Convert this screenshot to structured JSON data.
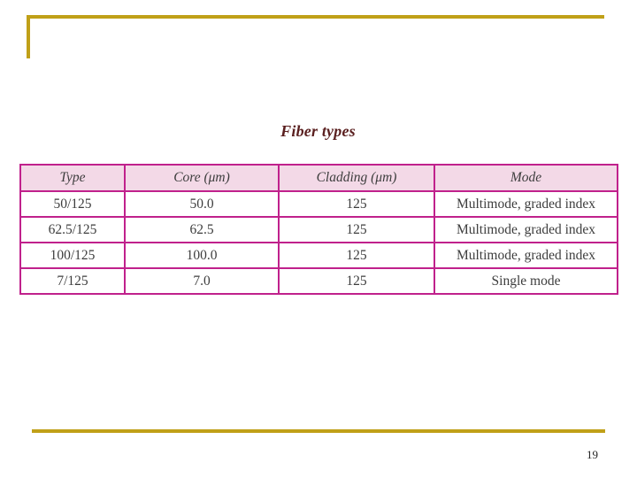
{
  "slide": {
    "title": "Fiber types",
    "page_number": "19"
  },
  "table": {
    "columns": [
      "Type",
      "Core (μm)",
      "Cladding (μm)",
      "Mode"
    ],
    "rows": [
      [
        "50/125",
        "50.0",
        "125",
        "Multimode, graded index"
      ],
      [
        "62.5/125",
        "62.5",
        "125",
        "Multimode, graded index"
      ],
      [
        "100/125",
        "100.0",
        "125",
        "Multimode, graded index"
      ],
      [
        "7/125",
        "7.0",
        "125",
        "Single mode"
      ]
    ]
  },
  "colors": {
    "accent_gold": "#C0A018",
    "table_border": "#C0218C",
    "header_background": "#F3D9E7",
    "title_color": "#5A1F1F",
    "text_color": "#3D3D3D"
  }
}
